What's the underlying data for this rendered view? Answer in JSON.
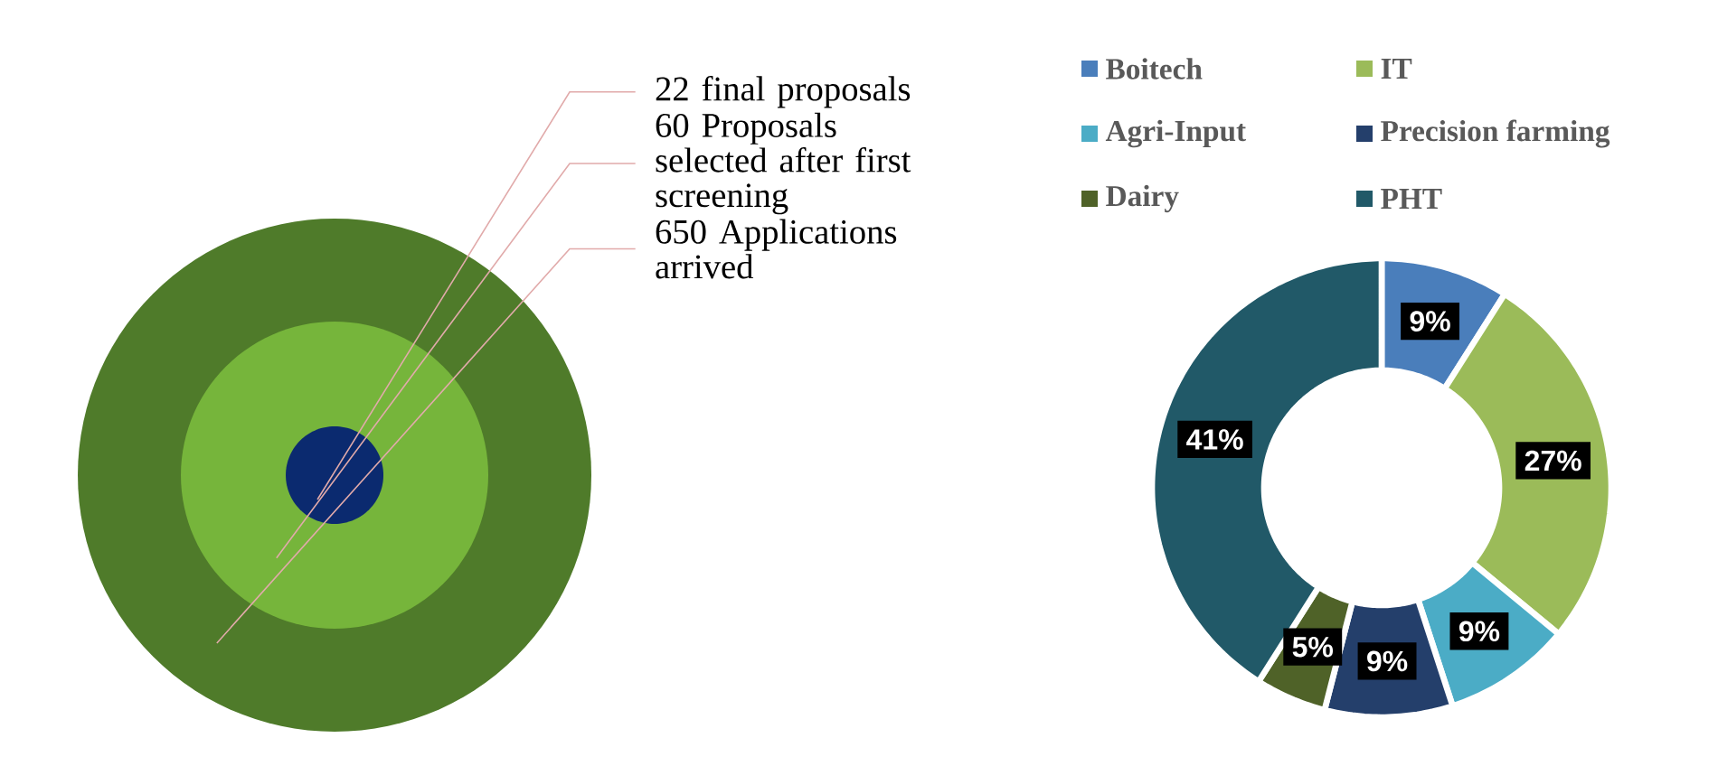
{
  "chart_data": [
    {
      "type": "other",
      "categories": [
        "final proposals",
        "Proposals selected after first screening",
        "Applications arrived"
      ],
      "values": [
        22,
        60,
        650
      ],
      "value_labels": [
        "22",
        "60",
        "650"
      ],
      "colors": [
        "#0b2a6f",
        "#76b53b",
        "#4f7b2a"
      ]
    },
    {
      "type": "donut",
      "categories": [
        "Boitech",
        "IT",
        "Agri-Input",
        "Precision farming",
        "Dairy",
        "PHT"
      ],
      "values": [
        9,
        27,
        9,
        9,
        5,
        41
      ],
      "value_labels": [
        "9%",
        "27%",
        "9%",
        "9%",
        "5%",
        "41%"
      ],
      "colors": [
        "#4a7ebb",
        "#9bbb59",
        "#4bacc6",
        "#243f6b",
        "#4f6228",
        "#215968"
      ],
      "legend": "top"
    }
  ]
}
